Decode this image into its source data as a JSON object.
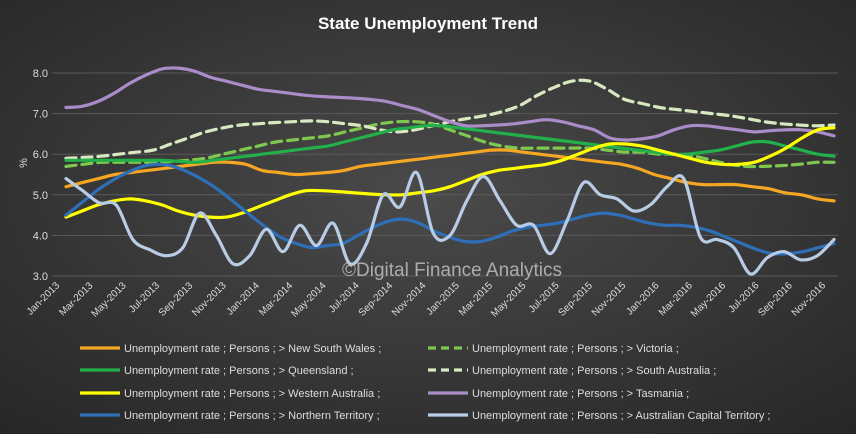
{
  "chart_data": {
    "type": "line",
    "title": "State Unemployment Trend",
    "ylabel": "%",
    "xlabel": "",
    "watermark": "©Digital Finance Analytics",
    "ylim": [
      3.0,
      8.0
    ],
    "yticks": [
      "8.0",
      "7.0",
      "6.0",
      "5.0",
      "4.0",
      "3.0"
    ],
    "ytick_values": [
      8.0,
      7.0,
      6.0,
      5.0,
      4.0,
      3.0
    ],
    "xtick_labels": [
      "Jan-2013",
      "Mar-2013",
      "May-2013",
      "Jul-2013",
      "Sep-2013",
      "Nov-2013",
      "Jan-2014",
      "Mar-2014",
      "May-2014",
      "Jul-2014",
      "Sep-2014",
      "Nov-2014",
      "Jan-2015",
      "Mar-2015",
      "May-2015",
      "Jul-2015",
      "Sep-2015",
      "Nov-2015",
      "Jan-2016",
      "Mar-2016",
      "May-2016",
      "Jul-2016",
      "Sep-2016",
      "Nov-2016"
    ],
    "grid": true,
    "legend_position": "bottom",
    "background": "#3a3a3a",
    "series": [
      {
        "name": "Unemployment rate ;  Persons ;  > New South Wales ;",
        "color": "#f5a623",
        "dash": false,
        "values": [
          5.2,
          5.3,
          5.4,
          5.5,
          5.55,
          5.6,
          5.65,
          5.7,
          5.75,
          5.8,
          5.8,
          5.75,
          5.6,
          5.55,
          5.5,
          5.52,
          5.55,
          5.6,
          5.7,
          5.75,
          5.8,
          5.85,
          5.9,
          5.95,
          6.0,
          6.05,
          6.1,
          6.1,
          6.05,
          6.0,
          5.95,
          5.9,
          5.85,
          5.8,
          5.75,
          5.65,
          5.5,
          5.4,
          5.3,
          5.25,
          5.25,
          5.25,
          5.2,
          5.15,
          5.05,
          5.0,
          4.9,
          4.85
        ]
      },
      {
        "name": "Unemployment rate ;  Persons ;  > Victoria ;",
        "color": "#7ec850",
        "dash": true,
        "values": [
          5.7,
          5.75,
          5.8,
          5.8,
          5.8,
          5.8,
          5.82,
          5.85,
          5.9,
          6.0,
          6.1,
          6.2,
          6.3,
          6.35,
          6.4,
          6.45,
          6.55,
          6.65,
          6.75,
          6.8,
          6.8,
          6.75,
          6.6,
          6.45,
          6.3,
          6.2,
          6.15,
          6.15,
          6.15,
          6.15,
          6.15,
          6.1,
          6.05,
          6.05,
          6.0,
          6.0,
          5.95,
          5.85,
          5.75,
          5.7,
          5.7,
          5.72,
          5.75,
          5.8,
          5.8
        ]
      },
      {
        "name": "Unemployment rate ;  Persons ;  > Queensland ;",
        "color": "#22b04a",
        "dash": false,
        "values": [
          5.85,
          5.85,
          5.85,
          5.85,
          5.85,
          5.85,
          5.85,
          5.82,
          5.8,
          5.85,
          5.9,
          5.95,
          6.0,
          6.05,
          6.1,
          6.15,
          6.2,
          6.3,
          6.4,
          6.5,
          6.6,
          6.65,
          6.7,
          6.7,
          6.65,
          6.6,
          6.55,
          6.5,
          6.45,
          6.4,
          6.35,
          6.3,
          6.25,
          6.2,
          6.15,
          6.1,
          6.05,
          6.0,
          6.0,
          6.05,
          6.1,
          6.2,
          6.3,
          6.3,
          6.2,
          6.1,
          6.0,
          5.95
        ]
      },
      {
        "name": "Unemployment rate ;  Persons ;  > South Australia ;",
        "color": "#d8e8c0",
        "dash": true,
        "values": [
          5.9,
          5.92,
          5.95,
          6.0,
          6.05,
          6.1,
          6.25,
          6.4,
          6.55,
          6.65,
          6.72,
          6.75,
          6.78,
          6.8,
          6.82,
          6.8,
          6.75,
          6.7,
          6.6,
          6.55,
          6.6,
          6.7,
          6.8,
          6.88,
          6.95,
          7.05,
          7.2,
          7.45,
          7.65,
          7.8,
          7.8,
          7.6,
          7.35,
          7.25,
          7.15,
          7.1,
          7.05,
          7.0,
          6.95,
          6.88,
          6.8,
          6.75,
          6.72,
          6.7,
          6.72
        ]
      },
      {
        "name": "Unemployment rate ;  Persons ;  > Western Australia ;",
        "color": "#ffff00",
        "dash": false,
        "values": [
          4.45,
          4.6,
          4.75,
          4.85,
          4.9,
          4.85,
          4.75,
          4.6,
          4.5,
          4.45,
          4.45,
          4.55,
          4.7,
          4.85,
          5.0,
          5.1,
          5.1,
          5.08,
          5.05,
          5.02,
          5.0,
          5.0,
          5.05,
          5.1,
          5.2,
          5.35,
          5.5,
          5.6,
          5.65,
          5.7,
          5.75,
          5.85,
          6.0,
          6.15,
          6.25,
          6.25,
          6.2,
          6.1,
          6.0,
          5.9,
          5.8,
          5.75,
          5.75,
          5.8,
          5.95,
          6.15,
          6.4,
          6.6,
          6.65
        ]
      },
      {
        "name": "Unemployment rate ;  Persons ;  > Tasmania ;",
        "color": "#a98cc8",
        "dash": false,
        "values": [
          7.15,
          7.18,
          7.3,
          7.5,
          7.75,
          7.95,
          8.1,
          8.12,
          8.05,
          7.9,
          7.8,
          7.7,
          7.6,
          7.55,
          7.5,
          7.45,
          7.42,
          7.4,
          7.38,
          7.35,
          7.3,
          7.2,
          7.1,
          6.95,
          6.8,
          6.7,
          6.7,
          6.72,
          6.75,
          6.8,
          6.85,
          6.8,
          6.7,
          6.6,
          6.4,
          6.35,
          6.38,
          6.45,
          6.6,
          6.7,
          6.7,
          6.65,
          6.6,
          6.55,
          6.58,
          6.6,
          6.6,
          6.55,
          6.45
        ]
      },
      {
        "name": "Unemployment rate ;  Persons ;  > Northern Territory ;",
        "color": "#2e6fb8",
        "dash": false,
        "values": [
          4.5,
          4.8,
          5.1,
          5.35,
          5.55,
          5.7,
          5.75,
          5.7,
          5.55,
          5.35,
          5.1,
          4.8,
          4.5,
          4.2,
          3.95,
          3.8,
          3.7,
          3.75,
          3.8,
          4.0,
          4.2,
          4.35,
          4.4,
          4.3,
          4.1,
          3.95,
          3.85,
          3.85,
          3.95,
          4.1,
          4.2,
          4.25,
          4.3,
          4.4,
          4.5,
          4.55,
          4.5,
          4.4,
          4.3,
          4.25,
          4.25,
          4.2,
          4.1,
          3.95,
          3.8,
          3.65,
          3.55,
          3.55,
          3.6,
          3.7,
          3.8
        ]
      },
      {
        "name": "Unemployment rate ;  Persons ;  > Australian Capital Territory ;",
        "color": "#b8cce4",
        "dash": false,
        "values": [
          5.4,
          5.1,
          4.8,
          4.75,
          3.9,
          3.65,
          3.5,
          3.7,
          4.55,
          4.0,
          3.3,
          3.5,
          4.15,
          3.6,
          4.25,
          3.75,
          4.3,
          3.3,
          3.8,
          5.0,
          4.7,
          5.55,
          4.05,
          4.0,
          4.85,
          5.45,
          4.85,
          4.25,
          4.25,
          3.55,
          4.35,
          5.3,
          5.0,
          4.9,
          4.6,
          4.75,
          5.2,
          5.4,
          3.95,
          3.9,
          3.7,
          3.05,
          3.45,
          3.6,
          3.4,
          3.5,
          3.9
        ]
      }
    ]
  }
}
